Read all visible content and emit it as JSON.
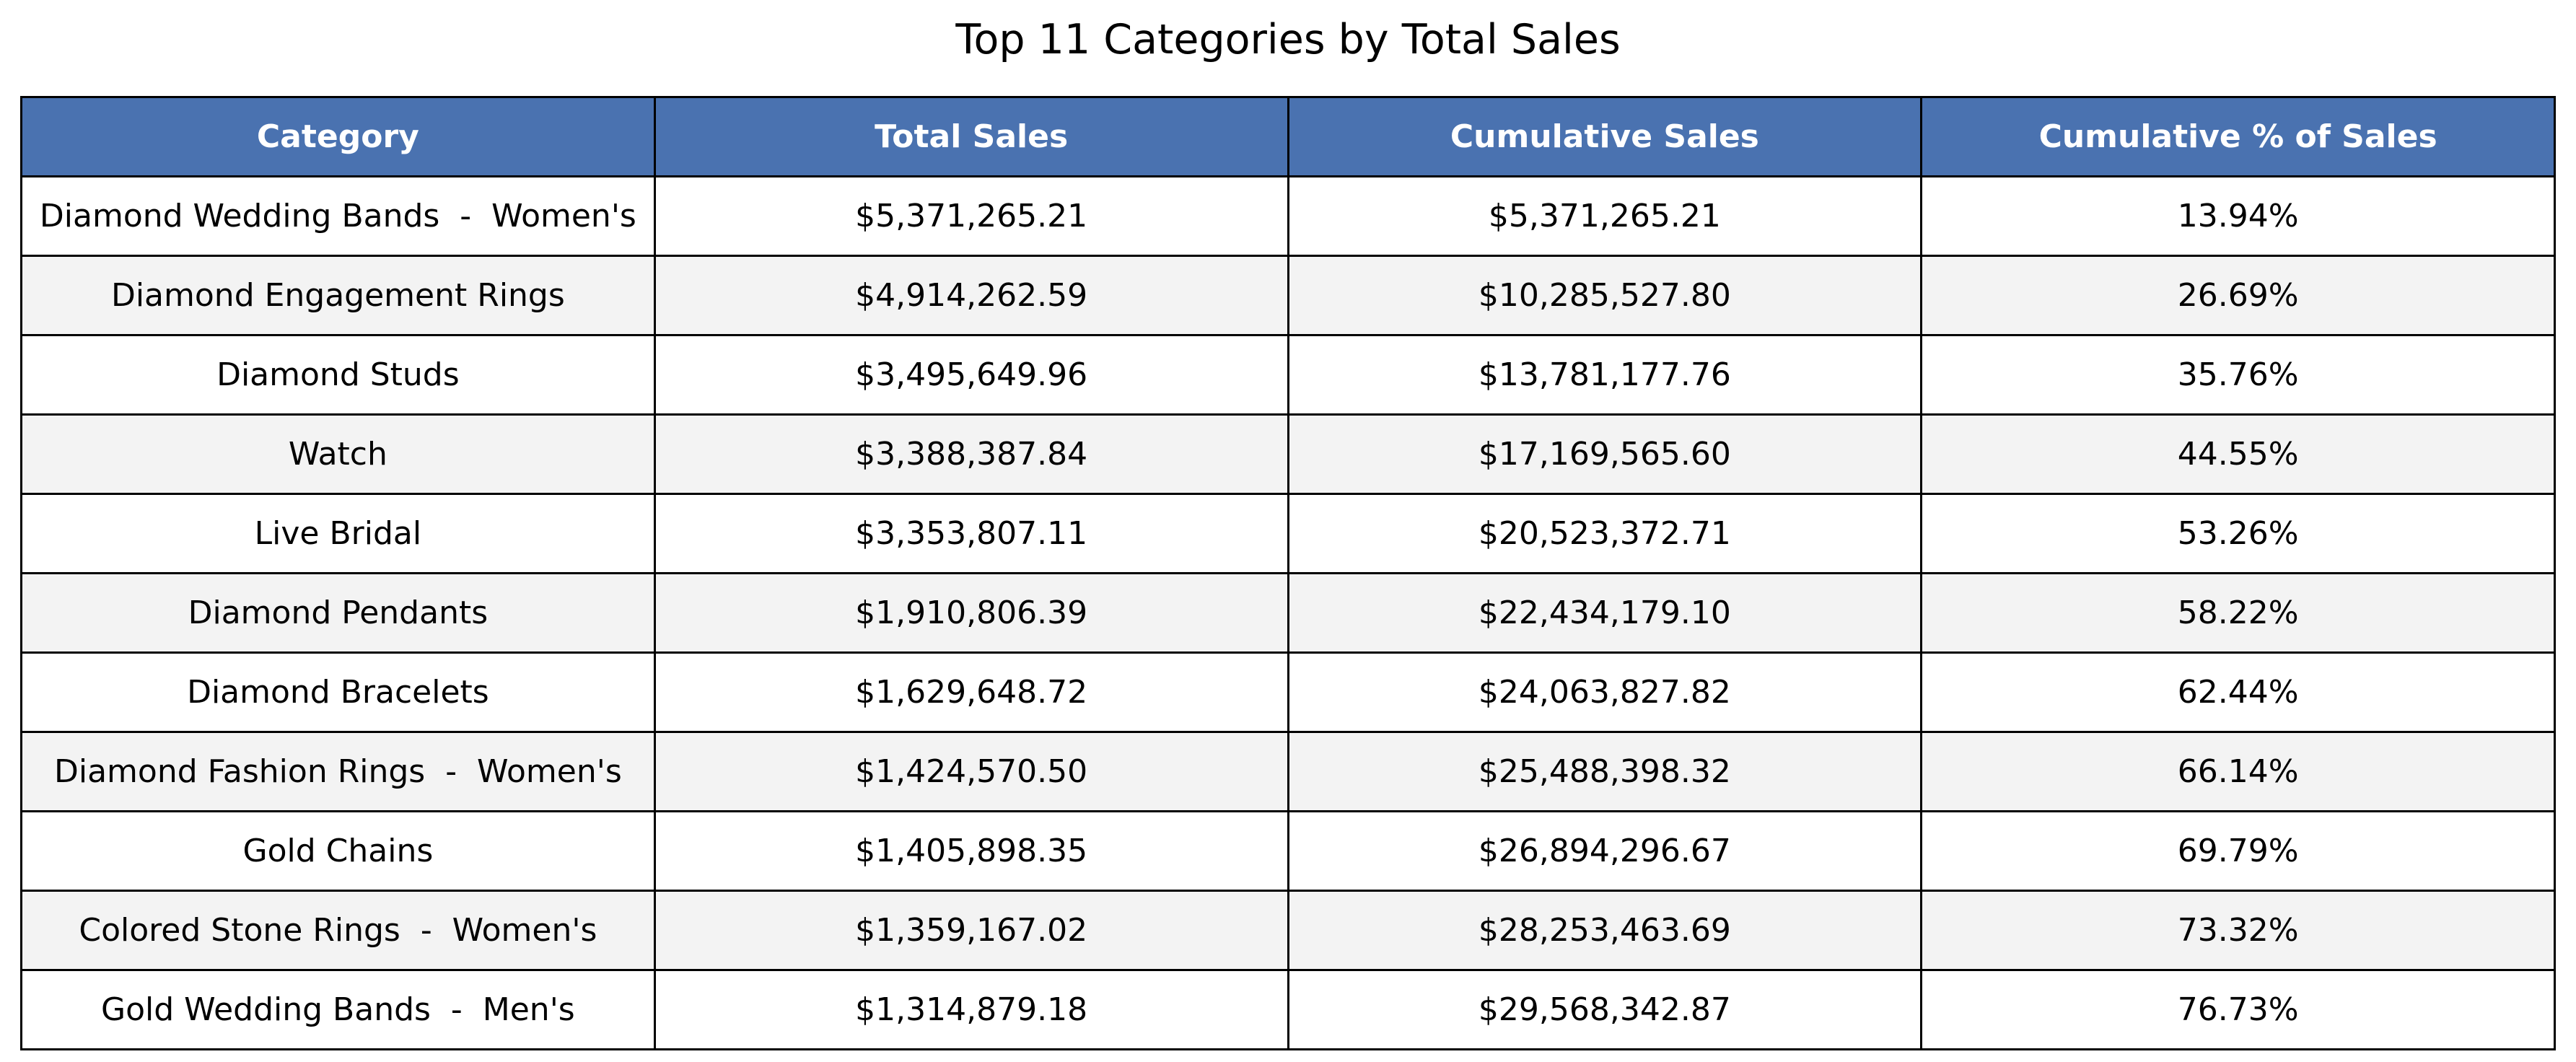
{
  "chart_data": {
    "type": "table",
    "title": "Top 11 Categories by Total Sales",
    "columns": [
      "Category",
      "Total Sales",
      "Cumulative Sales",
      "Cumulative % of Sales"
    ],
    "rows": [
      [
        "Diamond Wedding Bands  -  Women's",
        "$5,371,265.21",
        "$5,371,265.21",
        "13.94%"
      ],
      [
        "Diamond Engagement Rings",
        "$4,914,262.59",
        "$10,285,527.80",
        "26.69%"
      ],
      [
        "Diamond Studs",
        "$3,495,649.96",
        "$13,781,177.76",
        "35.76%"
      ],
      [
        "Watch",
        "$3,388,387.84",
        "$17,169,565.60",
        "44.55%"
      ],
      [
        "Live Bridal",
        "$3,353,807.11",
        "$20,523,372.71",
        "53.26%"
      ],
      [
        "Diamond Pendants",
        "$1,910,806.39",
        "$22,434,179.10",
        "58.22%"
      ],
      [
        "Diamond Bracelets",
        "$1,629,648.72",
        "$24,063,827.82",
        "62.44%"
      ],
      [
        "Diamond Fashion Rings  -  Women's",
        "$1,424,570.50",
        "$25,488,398.32",
        "66.14%"
      ],
      [
        "Gold Chains",
        "$1,405,898.35",
        "$26,894,296.67",
        "69.79%"
      ],
      [
        "Colored Stone Rings  -  Women's",
        "$1,359,167.02",
        "$28,253,463.69",
        "73.32%"
      ],
      [
        "Gold Wedding Bands  -  Men's",
        "$1,314,879.18",
        "$29,568,342.87",
        "76.73%"
      ]
    ],
    "colors": {
      "header_bg": "#4a72b0",
      "header_text": "#ffffff",
      "row_alt_bg": "#f3f3f3",
      "row_bg": "#ffffff"
    }
  }
}
